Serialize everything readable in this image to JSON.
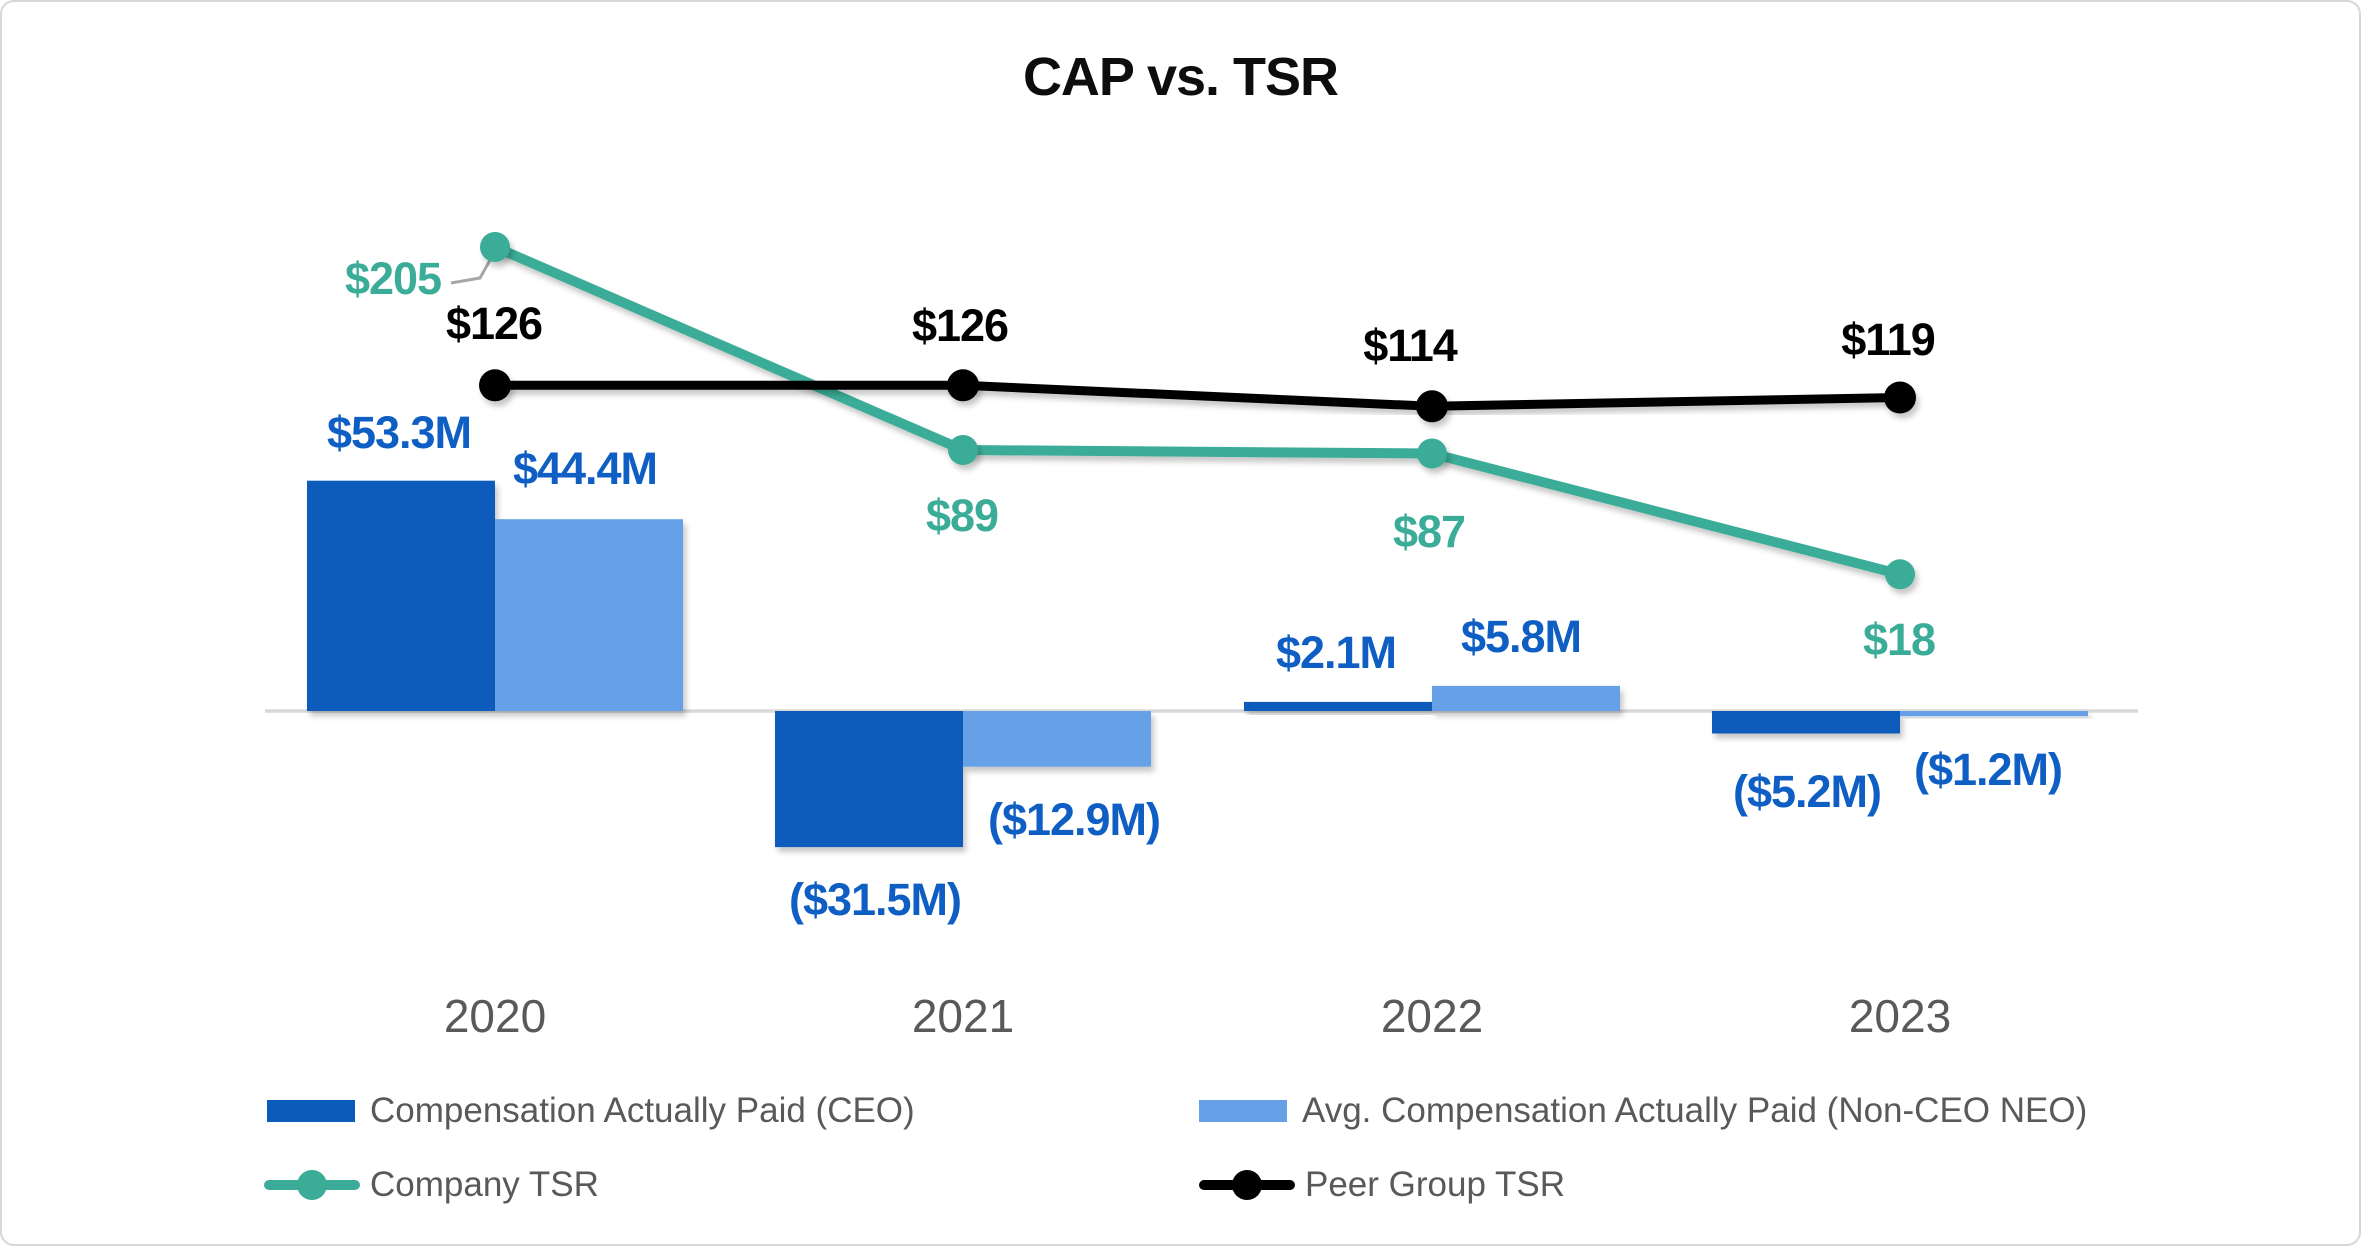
{
  "chart_data": {
    "type": "combo-bar-line",
    "title": "CAP vs. TSR",
    "categories": [
      "2020",
      "2021",
      "2022",
      "2023"
    ],
    "gridlines": false,
    "legend_position": "bottom",
    "bar_value_unit": "USD millions",
    "categories_axis": "fiscal year",
    "series": [
      {
        "name": "Compensation Actually Paid (CEO)",
        "type": "bar",
        "color": "#0B5BBB",
        "values": [
          53.3,
          -31.5,
          2.1,
          -5.2
        ],
        "labels": [
          "$53.3M",
          "($31.5M)",
          "$2.1M",
          "($5.2M)"
        ]
      },
      {
        "name": "Avg. Compensation Actually Paid (Non-CEO NEO)",
        "type": "bar",
        "color": "#66A1E8",
        "values": [
          44.4,
          -12.9,
          5.8,
          -1.2
        ],
        "labels": [
          "$44.4M",
          "($12.9M)",
          "$5.8M",
          "($1.2M)"
        ]
      },
      {
        "name": "Company TSR",
        "type": "line",
        "color": "#3BAC97",
        "values": [
          205,
          89,
          87,
          18
        ],
        "labels": [
          "$205",
          "$89",
          "$87",
          "$18"
        ]
      },
      {
        "name": "Peer Group TSR",
        "type": "line",
        "color": "#000000",
        "values": [
          126,
          126,
          114,
          119
        ],
        "labels": [
          "$126",
          "$126",
          "$114",
          "$119"
        ]
      }
    ]
  },
  "colors": {
    "background": "#FFFFFF",
    "frame_border": "#D7D7D7",
    "axis_line": "#D9D9D9",
    "leader_line": "#A6A6A6",
    "bar_label_text": "#0E5EC4",
    "category_text": "#595959",
    "legend_text": "#595959",
    "title_text": "#0D0D0D"
  }
}
